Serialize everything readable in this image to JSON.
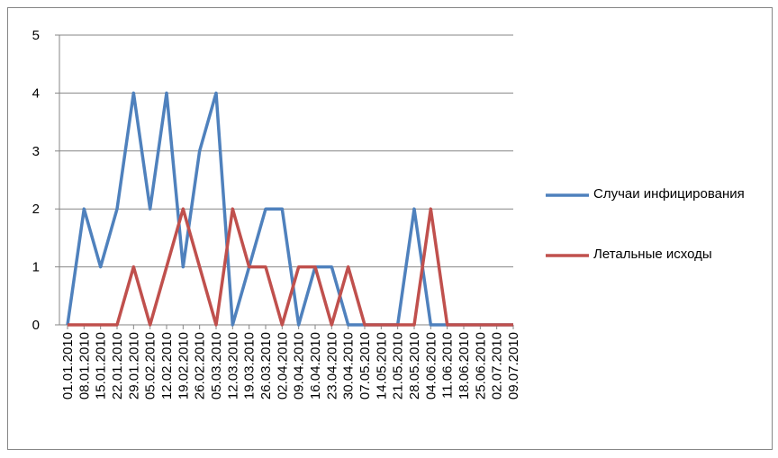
{
  "chart_data": {
    "type": "line",
    "categories": [
      "01.01.2010",
      "08.01.2010",
      "15.01.2010",
      "22.01.2010",
      "29.01.2010",
      "05.02.2010",
      "12.02.2010",
      "19.02.2010",
      "26.02.2010",
      "05.03.2010",
      "12.03.2010",
      "19.03.2010",
      "26.03.2010",
      "02.04.2010",
      "09.04.2010",
      "16.04.2010",
      "23.04.2010",
      "30.04.2010",
      "07.05.2010",
      "14.05.2010",
      "21.05.2010",
      "28.05.2010",
      "04.06.2010",
      "11.06.2010",
      "18.06.2010",
      "25.06.2010",
      "02.07.2010",
      "09.07.2010"
    ],
    "series": [
      {
        "name": "Случаи инфицирования",
        "color": "#4f81bd",
        "values": [
          0,
          2,
          1,
          2,
          4,
          2,
          4,
          1,
          3,
          4,
          0,
          1,
          2,
          2,
          0,
          1,
          1,
          0,
          0,
          0,
          0,
          2,
          0,
          0,
          0,
          0,
          0,
          0
        ]
      },
      {
        "name": "Летальные исходы",
        "color": "#c0504d",
        "values": [
          0,
          0,
          0,
          0,
          1,
          0,
          1,
          2,
          1,
          0,
          2,
          1,
          1,
          0,
          1,
          1,
          0,
          1,
          0,
          0,
          0,
          0,
          2,
          0,
          0,
          0,
          0,
          0
        ]
      }
    ],
    "ylim": [
      0,
      5
    ],
    "yticks": [
      0,
      1,
      2,
      3,
      4,
      5
    ],
    "grid": true,
    "legend": "right"
  }
}
